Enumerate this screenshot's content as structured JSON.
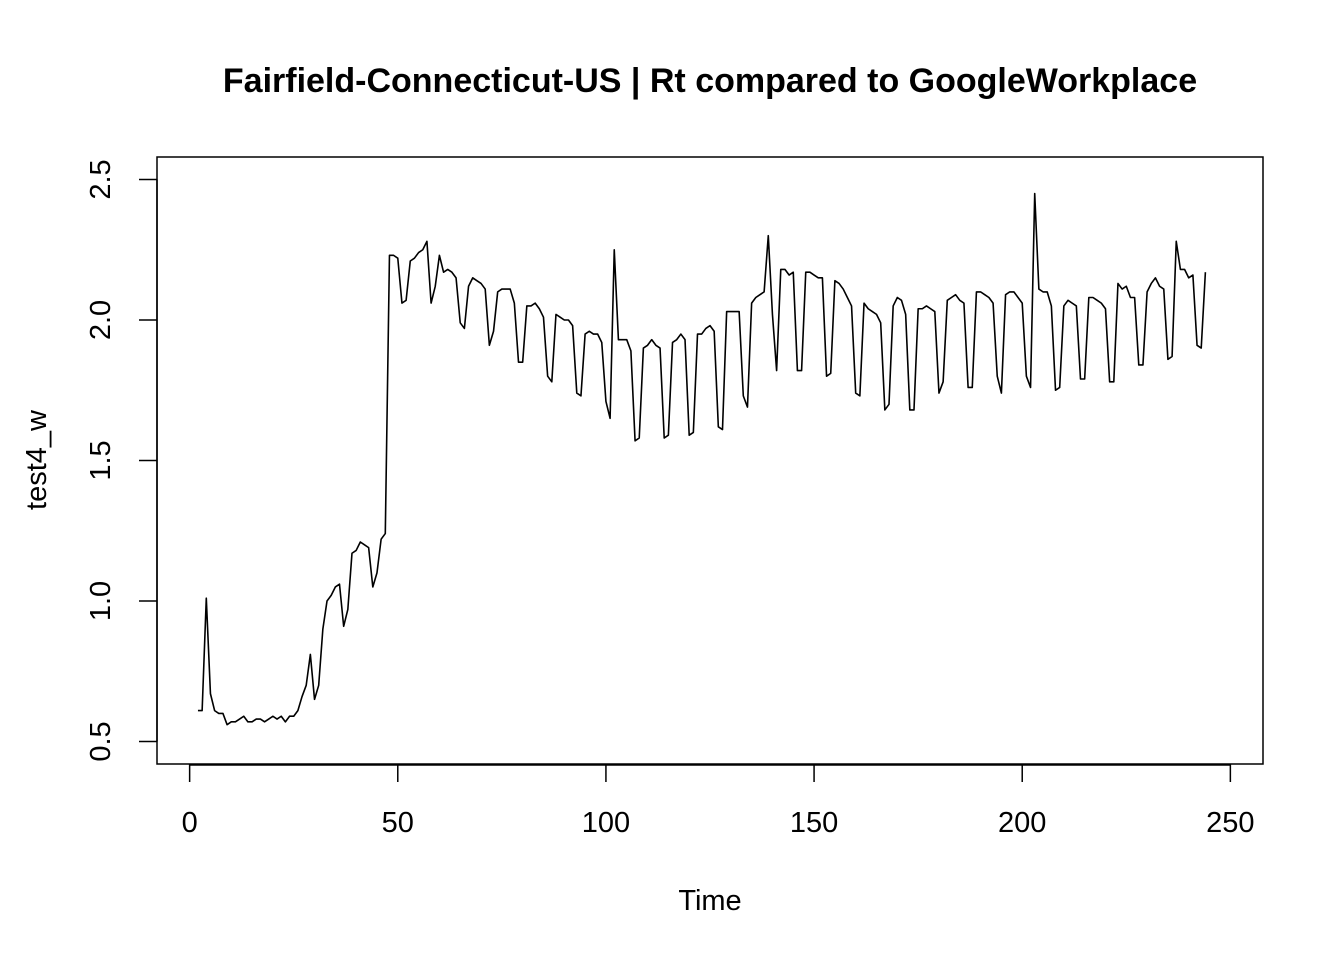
{
  "chart_data": {
    "type": "line",
    "title": "Fairfield-Connecticut-US | Rt compared to GoogleWorkplace",
    "xlabel": "Time",
    "ylabel": "test4_w",
    "xlim": [
      2,
      248
    ],
    "ylim": [
      0.5,
      2.5
    ],
    "x_ticks": [
      0,
      50,
      100,
      150,
      200,
      250
    ],
    "y_ticks": [
      0.5,
      1.0,
      1.5,
      2.0,
      2.5
    ],
    "x_tick_labels": [
      "0",
      "50",
      "100",
      "150",
      "200",
      "250"
    ],
    "y_tick_labels": [
      "0.5",
      "1.0",
      "1.5",
      "2.0",
      "2.5"
    ],
    "grid": false,
    "legend": "none",
    "line_color": "#000000",
    "series": [
      {
        "x_start": 2,
        "x_step": 1,
        "values": [
          0.61,
          0.61,
          1.01,
          0.67,
          0.61,
          0.6,
          0.6,
          0.56,
          0.57,
          0.57,
          0.58,
          0.59,
          0.57,
          0.57,
          0.58,
          0.58,
          0.57,
          0.58,
          0.59,
          0.58,
          0.59,
          0.57,
          0.59,
          0.59,
          0.61,
          0.66,
          0.7,
          0.81,
          0.65,
          0.7,
          0.9,
          1.0,
          1.02,
          1.05,
          1.06,
          0.91,
          0.97,
          1.17,
          1.18,
          1.21,
          1.2,
          1.19,
          1.05,
          1.1,
          1.22,
          1.24,
          2.23,
          2.23,
          2.22,
          2.06,
          2.07,
          2.21,
          2.22,
          2.24,
          2.25,
          2.28,
          2.06,
          2.12,
          2.23,
          2.17,
          2.18,
          2.17,
          2.15,
          1.99,
          1.97,
          2.12,
          2.15,
          2.14,
          2.13,
          2.11,
          1.91,
          1.96,
          2.1,
          2.11,
          2.11,
          2.11,
          2.06,
          1.85,
          1.85,
          2.05,
          2.05,
          2.06,
          2.04,
          2.01,
          1.8,
          1.78,
          2.02,
          2.01,
          2.0,
          2.0,
          1.98,
          1.74,
          1.73,
          1.95,
          1.96,
          1.95,
          1.95,
          1.92,
          1.71,
          1.65,
          2.25,
          1.93,
          1.93,
          1.93,
          1.89,
          1.57,
          1.58,
          1.9,
          1.91,
          1.93,
          1.91,
          1.9,
          1.58,
          1.59,
          1.92,
          1.93,
          1.95,
          1.93,
          1.59,
          1.6,
          1.95,
          1.95,
          1.97,
          1.98,
          1.96,
          1.62,
          1.61,
          2.03,
          2.03,
          2.03,
          2.03,
          1.73,
          1.69,
          2.06,
          2.08,
          2.09,
          2.1,
          2.3,
          2.02,
          1.82,
          2.18,
          2.18,
          2.16,
          2.17,
          1.82,
          1.82,
          2.17,
          2.17,
          2.16,
          2.15,
          2.15,
          1.8,
          1.81,
          2.14,
          2.13,
          2.11,
          2.08,
          2.05,
          1.74,
          1.73,
          2.06,
          2.04,
          2.03,
          2.02,
          1.99,
          1.68,
          1.7,
          2.05,
          2.08,
          2.07,
          2.02,
          1.68,
          1.68,
          2.04,
          2.04,
          2.05,
          2.04,
          2.03,
          1.74,
          1.78,
          2.07,
          2.08,
          2.09,
          2.07,
          2.06,
          1.76,
          1.76,
          2.1,
          2.1,
          2.09,
          2.08,
          2.06,
          1.8,
          1.74,
          2.09,
          2.1,
          2.1,
          2.08,
          2.06,
          1.8,
          1.76,
          2.45,
          2.11,
          2.1,
          2.1,
          2.05,
          1.75,
          1.76,
          2.05,
          2.07,
          2.06,
          2.05,
          1.79,
          1.79,
          2.08,
          2.08,
          2.07,
          2.06,
          2.04,
          1.78,
          1.78,
          2.13,
          2.11,
          2.12,
          2.08,
          2.08,
          1.84,
          1.84,
          2.1,
          2.13,
          2.15,
          2.12,
          2.11,
          1.86,
          1.87,
          2.28,
          2.18,
          2.18,
          2.15,
          2.16,
          1.91,
          1.9,
          2.17
        ]
      }
    ]
  }
}
